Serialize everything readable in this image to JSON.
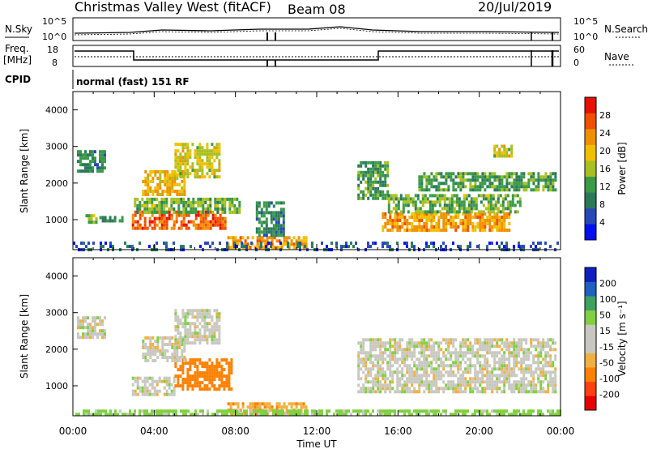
{
  "header": {
    "station": "Christmas Valley West (fitACF)",
    "beam": "Beam 08",
    "date": "20/Jul/2019"
  },
  "status_panels": {
    "nsky_label": "N.Sky",
    "nsearch_label": "N.Search",
    "freq_label_line1": "Freq.",
    "freq_label_line2": "[MHz]",
    "nave_label": "Nave",
    "cpid_label": "CPID",
    "cpid_value": "normal (fast) 151 RF",
    "noise_ticks": [
      "10^5",
      "10^0"
    ],
    "freq_ticks": [
      "18",
      "8"
    ],
    "nave_ticks": [
      "60",
      "0"
    ]
  },
  "colors": {
    "power_scale": [
      "#0010f0",
      "#2848b8",
      "#2a7a5a",
      "#3a9a48",
      "#a8c020",
      "#f0c000",
      "#f09000",
      "#f05000",
      "#e81000"
    ],
    "velocity_scale": [
      "#e80000",
      "#ff4010",
      "#ff8000",
      "#f0b040",
      "#c8c8c0",
      "#c8c8c0",
      "#80d040",
      "#40a060",
      "#2060c0",
      "#1020c0"
    ]
  },
  "chart_data": [
    {
      "type": "heatmap",
      "panel": "power",
      "xlabel": "Time UT",
      "ylabel": "Slant Range [km]",
      "x_ticks": [
        "00:00",
        "04:00",
        "08:00",
        "12:00",
        "16:00",
        "20:00",
        "00:00"
      ],
      "x_range_hours": [
        0,
        24
      ],
      "y_range_km": [
        180,
        4500
      ],
      "y_ticks": [
        1000,
        2000,
        3000,
        4000
      ],
      "colorbar": {
        "label": "Power [dB]",
        "range": [
          0,
          32
        ],
        "ticks": [
          "4",
          "8",
          "12",
          "16",
          "20",
          "24",
          "28"
        ]
      },
      "echo_regions": [
        {
          "t0": 0.2,
          "t1": 1.6,
          "r0": 2300,
          "r1": 2900,
          "value": 10
        },
        {
          "t0": 0.5,
          "t1": 1.2,
          "r0": 900,
          "r1": 1150,
          "value": 14
        },
        {
          "t0": 1.3,
          "t1": 2.4,
          "r0": 950,
          "r1": 1100,
          "value": 10
        },
        {
          "t0": 2.9,
          "t1": 7.5,
          "r0": 800,
          "r1": 1250,
          "value": 26
        },
        {
          "t0": 3.0,
          "t1": 8.2,
          "r0": 1200,
          "r1": 1600,
          "value": 14
        },
        {
          "t0": 3.4,
          "t1": 5.5,
          "r0": 1700,
          "r1": 2350,
          "value": 20
        },
        {
          "t0": 5.0,
          "t1": 7.2,
          "r0": 2200,
          "r1": 3100,
          "value": 18
        },
        {
          "t0": 7.6,
          "t1": 11.5,
          "r0": 200,
          "r1": 550,
          "value": 22
        },
        {
          "t0": 9.0,
          "t1": 10.4,
          "r0": 600,
          "r1": 1500,
          "value": 10
        },
        {
          "t0": 14.0,
          "t1": 15.5,
          "r0": 1600,
          "r1": 2600,
          "value": 12
        },
        {
          "t0": 15.2,
          "t1": 21.5,
          "r0": 750,
          "r1": 1200,
          "value": 22
        },
        {
          "t0": 15.5,
          "t1": 22.0,
          "r0": 1200,
          "r1": 1700,
          "value": 14
        },
        {
          "t0": 17.0,
          "t1": 23.8,
          "r0": 1800,
          "r1": 2300,
          "value": 12
        },
        {
          "t0": 20.7,
          "t1": 21.6,
          "r0": 2750,
          "r1": 3050,
          "value": 18
        },
        {
          "t0": 0.0,
          "t1": 24.0,
          "r0": 180,
          "r1": 400,
          "value": 6
        }
      ]
    },
    {
      "type": "heatmap",
      "panel": "velocity",
      "xlabel": "Time UT",
      "ylabel": "Slant Range [km]",
      "x_ticks": [
        "00:00",
        "04:00",
        "08:00",
        "12:00",
        "16:00",
        "20:00",
        "00:00"
      ],
      "x_range_hours": [
        0,
        24
      ],
      "y_range_km": [
        180,
        4500
      ],
      "y_ticks": [
        1000,
        2000,
        3000,
        4000
      ],
      "colorbar": {
        "label": "Velocity [m s⁻¹]",
        "range": [
          -250,
          250
        ],
        "ticks": [
          "-200",
          "-100",
          "-50",
          "-15",
          "15",
          "50",
          "100",
          "200"
        ]
      },
      "echo_regions": [
        {
          "t0": 0.2,
          "t1": 1.6,
          "r0": 2300,
          "r1": 2900,
          "value": 0
        },
        {
          "t0": 2.9,
          "t1": 5.0,
          "r0": 800,
          "r1": 1250,
          "value": 0
        },
        {
          "t0": 5.0,
          "t1": 7.8,
          "r0": 900,
          "r1": 1750,
          "value": -70
        },
        {
          "t0": 3.4,
          "t1": 5.5,
          "r0": 1700,
          "r1": 2350,
          "value": 0
        },
        {
          "t0": 5.0,
          "t1": 7.2,
          "r0": 2200,
          "r1": 3100,
          "value": 0
        },
        {
          "t0": 7.6,
          "t1": 11.5,
          "r0": 250,
          "r1": 550,
          "value": -40
        },
        {
          "t0": 14.0,
          "t1": 23.8,
          "r0": 800,
          "r1": 2300,
          "value": 0
        },
        {
          "t0": 0.0,
          "t1": 24.0,
          "r0": 180,
          "r1": 350,
          "value": 30
        }
      ]
    }
  ]
}
